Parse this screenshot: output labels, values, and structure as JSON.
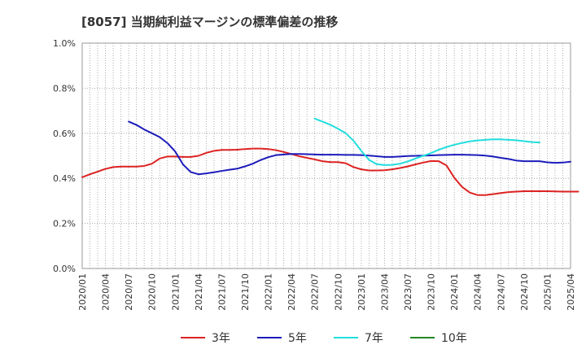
{
  "chart_data": {
    "type": "line",
    "title": "[8057]  当期純利益マージンの標準偏差の推移",
    "xlabel": "",
    "ylabel": "",
    "ylim": [
      0,
      1.0
    ],
    "yticks": [
      "0.0%",
      "0.2%",
      "0.4%",
      "0.6%",
      "0.8%",
      "1.0%"
    ],
    "xticks": [
      "2020/01",
      "2020/04",
      "2020/07",
      "2020/10",
      "2021/01",
      "2021/04",
      "2021/07",
      "2021/10",
      "2022/01",
      "2022/04",
      "2022/07",
      "2022/10",
      "2023/01",
      "2023/04",
      "2023/07",
      "2023/10",
      "2024/01",
      "2024/04",
      "2024/07",
      "2024/10",
      "2025/01",
      "2025/04"
    ],
    "x_start": "2020/01",
    "grid": "dotted",
    "legend_position": "bottom",
    "series": [
      {
        "name": "3年",
        "color": "#dd2222",
        "start": "2020/01",
        "values": [
          0.405,
          0.418,
          0.43,
          0.442,
          0.45,
          0.452,
          0.452,
          0.452,
          0.455,
          0.465,
          0.488,
          0.497,
          0.497,
          0.495,
          0.495,
          0.5,
          0.513,
          0.522,
          0.526,
          0.526,
          0.527,
          0.53,
          0.532,
          0.532,
          0.53,
          0.525,
          0.517,
          0.508,
          0.498,
          0.491,
          0.484,
          0.476,
          0.472,
          0.472,
          0.467,
          0.45,
          0.44,
          0.435,
          0.435,
          0.436,
          0.44,
          0.446,
          0.453,
          0.462,
          0.47,
          0.477,
          0.476,
          0.457,
          0.403,
          0.362,
          0.337,
          0.326,
          0.326,
          0.33,
          0.335,
          0.339,
          0.341,
          0.343,
          0.343,
          0.343,
          0.343,
          0.342,
          0.341,
          0.341,
          0.341
        ]
      },
      {
        "name": "5年",
        "color": "#1c1cbb",
        "start": "2020/07",
        "values": [
          0.652,
          0.637,
          0.617,
          0.6,
          0.583,
          0.556,
          0.519,
          0.462,
          0.428,
          0.418,
          0.422,
          0.427,
          0.433,
          0.438,
          0.443,
          0.453,
          0.465,
          0.481,
          0.494,
          0.503,
          0.506,
          0.508,
          0.508,
          0.507,
          0.506,
          0.505,
          0.505,
          0.505,
          0.504,
          0.504,
          0.503,
          0.501,
          0.498,
          0.495,
          0.495,
          0.497,
          0.499,
          0.5,
          0.501,
          0.502,
          0.503,
          0.504,
          0.505,
          0.505,
          0.504,
          0.503,
          0.501,
          0.497,
          0.491,
          0.486,
          0.479,
          0.476,
          0.476,
          0.476,
          0.471,
          0.469,
          0.47,
          0.474
        ]
      },
      {
        "name": "7年",
        "color": "#22dddd",
        "start": "2022/07",
        "values": [
          0.665,
          0.652,
          0.638,
          0.62,
          0.6,
          0.567,
          0.522,
          0.482,
          0.463,
          0.459,
          0.46,
          0.465,
          0.475,
          0.488,
          0.5,
          0.512,
          0.527,
          0.539,
          0.549,
          0.557,
          0.564,
          0.568,
          0.571,
          0.573,
          0.573,
          0.571,
          0.569,
          0.565,
          0.561,
          0.559
        ]
      },
      {
        "name": "10年",
        "color": "#228822",
        "start": "2025/01",
        "values": []
      }
    ]
  }
}
